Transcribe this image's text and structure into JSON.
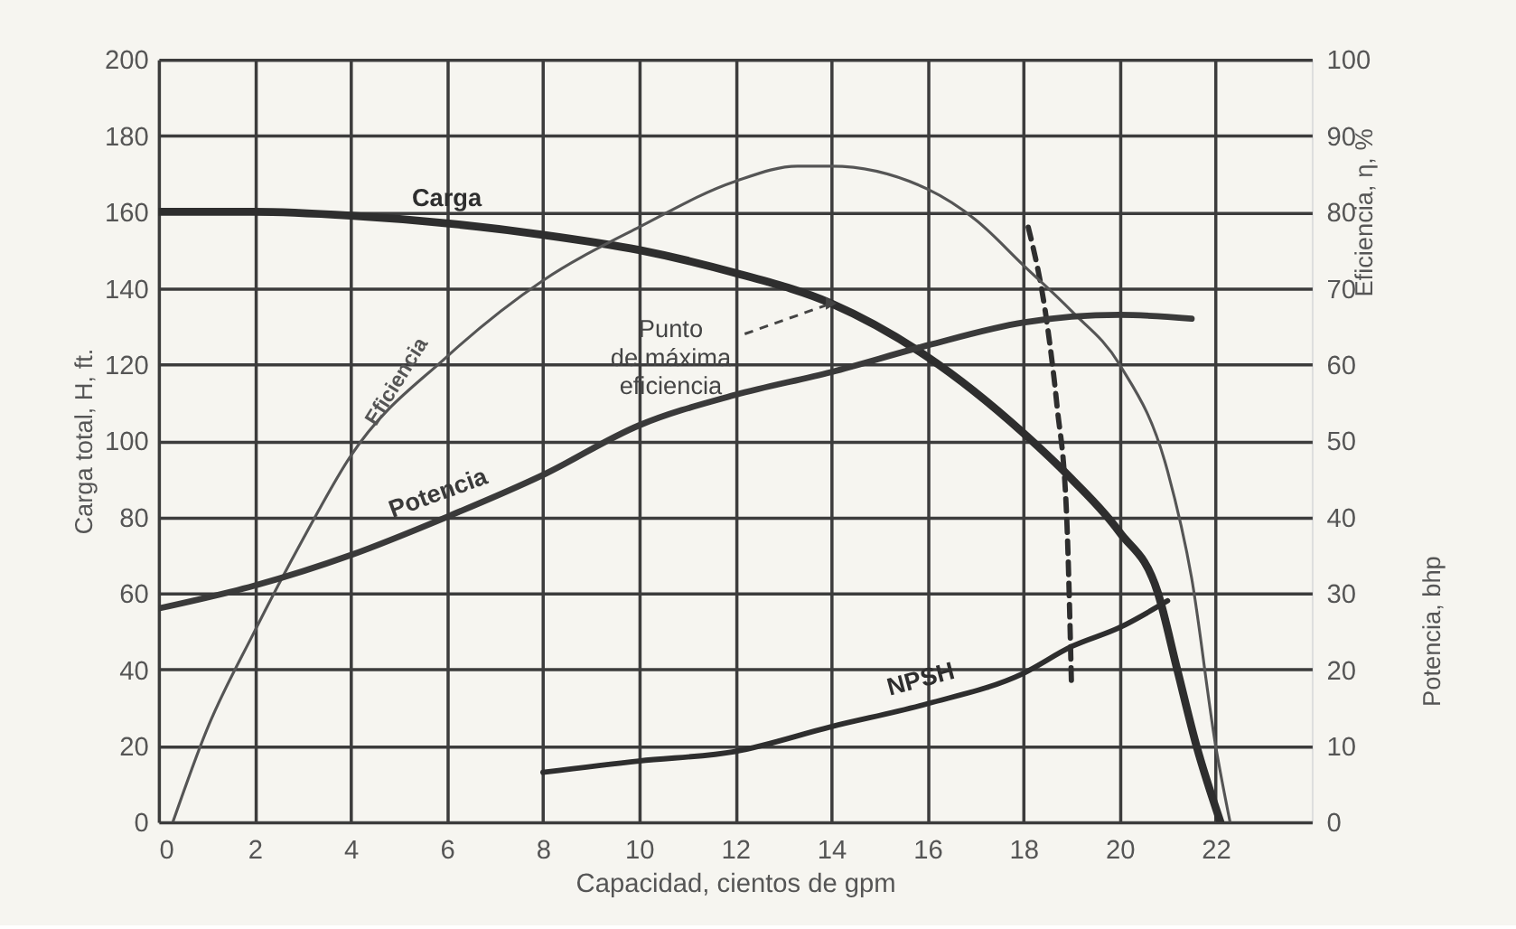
{
  "chart_data": {
    "type": "line",
    "xlabel": "Capacidad, cientos de gpm",
    "ylabel": "Carga total, H, ft.",
    "y2label": "Eficiencia, η, %",
    "xlim": [
      0,
      24
    ],
    "xticks": [
      0,
      2,
      4,
      6,
      8,
      10,
      12,
      14,
      16,
      18,
      20,
      22
    ],
    "ylim": [
      0,
      200
    ],
    "yticks": [
      0,
      20,
      40,
      60,
      80,
      100,
      120,
      140,
      160,
      180,
      200
    ],
    "y2lim": [
      0,
      100
    ],
    "y2ticks": [
      0,
      10,
      20,
      30,
      40,
      50,
      60,
      70,
      80,
      90,
      100
    ],
    "grid": true,
    "marker": "none",
    "series": [
      {
        "name": "Carga",
        "color": "#2e2e2e",
        "line_style": "solid",
        "x": [
          0,
          2,
          4,
          6,
          8,
          10,
          12,
          14,
          16,
          18,
          19,
          20,
          20.8,
          21.2,
          21.6,
          22.1
        ],
        "values": [
          160,
          160,
          159,
          157,
          154,
          150,
          144,
          136,
          122,
          102,
          90,
          76,
          60,
          40,
          20,
          0
        ]
      },
      {
        "name": "Eficiencia",
        "color": "#555555",
        "axis": "y2",
        "line_style": "solid",
        "x": [
          0.3,
          1,
          2,
          3,
          4,
          6,
          8,
          10,
          12,
          13.3,
          14,
          16,
          17,
          18,
          19,
          20,
          21,
          21.5,
          22,
          22.3
        ],
        "values": [
          0,
          12,
          25,
          37,
          48,
          61,
          71,
          78,
          84,
          86,
          86,
          83,
          79,
          73,
          67,
          60,
          46,
          32,
          10,
          0
        ]
      },
      {
        "name": "Potencia",
        "color": "#3a3a3a",
        "axis": "y2",
        "line_style": "solid",
        "x": [
          0,
          2,
          4,
          6,
          8,
          10,
          12,
          14,
          16,
          18,
          20,
          21.5
        ],
        "values": [
          28,
          31,
          35,
          40,
          45.5,
          52,
          56,
          59,
          62.5,
          65.5,
          66.5,
          66
        ]
      },
      {
        "name": "NPSH",
        "color": "#2e2e2e",
        "line_style": "solid",
        "x": [
          8,
          10,
          12,
          14,
          16,
          18,
          19,
          20,
          21
        ],
        "values": [
          13,
          16,
          18.5,
          25,
          31,
          39,
          46,
          51,
          58
        ]
      },
      {
        "color": "#2e2e2e",
        "line_style": "dashed",
        "x": [
          18.1,
          18.5,
          18.7,
          18.9,
          19.0
        ],
        "values": [
          156,
          130,
          109,
          80,
          36
        ]
      }
    ],
    "annotations": [
      {
        "text": "Punto\nde máxima\neficiencia",
        "x": 14,
        "y": 136
      },
      "Potencia, bhp"
    ]
  }
}
